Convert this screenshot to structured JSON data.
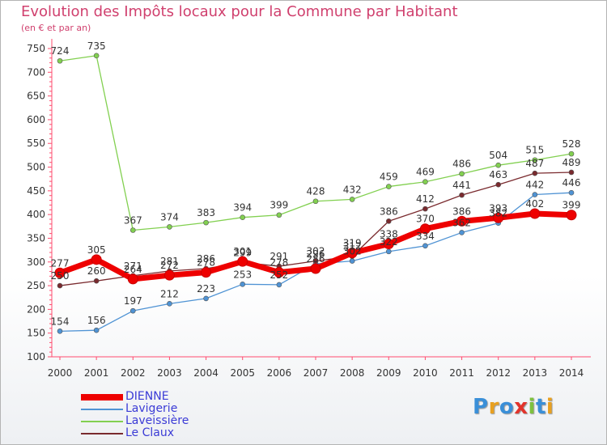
{
  "title": "Evolution des Impôts locaux pour la Commune par Habitant",
  "subtitle": "(en € et par an)",
  "brand": [
    "P",
    "r",
    "o",
    "x",
    "i",
    "t",
    "i"
  ],
  "brand_colors": [
    "#3a8fd8",
    "#e8a020",
    "#3a8fd8",
    "#e2332b",
    "#7ec13f",
    "#3a8fd8",
    "#e8a020"
  ],
  "chart_data": {
    "type": "line",
    "title": "Evolution des Impôts locaux pour la Commune par Habitant",
    "subtitle": "(en € et par an)",
    "x": [
      "2000",
      "2001",
      "2002",
      "2003",
      "2004",
      "2005",
      "2006",
      "2007",
      "2008",
      "2009",
      "2010",
      "2011",
      "2012",
      "2013",
      "2014"
    ],
    "yticks": [
      "100",
      "150",
      "200",
      "250",
      "300",
      "350",
      "400",
      "450",
      "500",
      "550",
      "600",
      "650",
      "700",
      "750"
    ],
    "ylim": [
      100,
      750
    ],
    "grid": false,
    "legend_position": "bottom-left",
    "series": [
      {
        "name": "DIENNE",
        "color": "#ee0000",
        "values": [
          277,
          305,
          264,
          272,
          278,
          301,
          278,
          286,
          319,
          338,
          370,
          386,
          393,
          402,
          399
        ],
        "labels": [
          "277",
          "305",
          "264",
          "272",
          "278",
          "301",
          "278",
          "286",
          "319",
          "338",
          "370",
          "386",
          "393",
          "402",
          "399"
        ]
      },
      {
        "name": "Lavigerie",
        "color": "#4f93d4",
        "values": [
          154,
          156,
          197,
          212,
          223,
          253,
          252,
          296,
          302,
          322,
          334,
          362,
          382,
          442,
          446
        ],
        "labels": [
          "154",
          "156",
          "197",
          "212",
          "223",
          "253",
          "252",
          "296",
          "302",
          "322",
          "334",
          "362",
          "382",
          "442",
          "446"
        ]
      },
      {
        "name": "Laveissière",
        "color": "#82d050",
        "values": [
          724,
          735,
          367,
          374,
          383,
          394,
          399,
          428,
          432,
          459,
          469,
          486,
          504,
          515,
          528
        ],
        "labels": [
          "724",
          "735",
          "367",
          "374",
          "383",
          "394",
          "399",
          "428",
          "432",
          "459",
          "469",
          "486",
          "504",
          "515",
          "528"
        ]
      },
      {
        "name": "Le Claux",
        "color": "#7a2a2e",
        "values": [
          250,
          260,
          271,
          281,
          286,
          299,
          291,
          302,
          312,
          386,
          412,
          441,
          463,
          487,
          489
        ],
        "labels": [
          "250",
          "260",
          "271",
          "281",
          "286",
          "299",
          "291",
          "302",
          "312",
          "386",
          "412",
          "441",
          "463",
          "487",
          "489"
        ]
      }
    ]
  }
}
